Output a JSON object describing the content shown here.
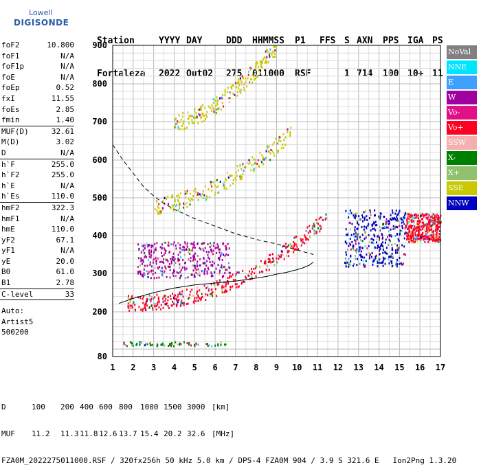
{
  "logo": {
    "line1": "Lowell",
    "line2": "DIGISONDE"
  },
  "header": {
    "row1": [
      "Station",
      "YYYY",
      "DAY",
      "DDD",
      "HHMMSS",
      "P1",
      "FFS",
      "S",
      "AXN",
      "PPS",
      "IGA",
      "PS"
    ],
    "row2": [
      "Fortaleza",
      "2022",
      "Out02",
      "275",
      "011000",
      "RSF",
      "",
      "1",
      "714",
      "100",
      "10+",
      "11"
    ]
  },
  "params": [
    {
      "k": "foF2",
      "v": "10.800"
    },
    {
      "k": "foF1",
      "v": "N/A"
    },
    {
      "k": "foF1p",
      "v": "N/A"
    },
    {
      "k": "foE",
      "v": "N/A"
    },
    {
      "k": "foEp",
      "v": "0.52"
    },
    {
      "k": "fxI",
      "v": "11.55"
    },
    {
      "k": "foEs",
      "v": "2.85"
    },
    {
      "k": "fmin",
      "v": "1.40"
    },
    "sep",
    {
      "k": "MUF(D)",
      "v": "32.61"
    },
    {
      "k": "M(D)",
      "v": "3.02"
    },
    {
      "k": "D",
      "v": "N/A"
    },
    "sep",
    {
      "k": "h`F",
      "v": "255.0"
    },
    {
      "k": "h`F2",
      "v": "255.0"
    },
    {
      "k": "h`E",
      "v": "N/A"
    },
    {
      "k": "h`Es",
      "v": "110.0"
    },
    "sep",
    {
      "k": "hmF2",
      "v": "322.3"
    },
    {
      "k": "hmF1",
      "v": "N/A"
    },
    {
      "k": "hmE",
      "v": "110.0"
    },
    {
      "k": "yF2",
      "v": "67.1"
    },
    {
      "k": "yF1",
      "v": "N/A"
    },
    {
      "k": "yE",
      "v": "20.0"
    },
    {
      "k": "B0",
      "v": "61.0"
    },
    {
      "k": "B1",
      "v": "2.78"
    },
    "sep",
    {
      "k": "C-level",
      "v": "33"
    },
    "sep"
  ],
  "auto_lines": [
    "Auto:",
    "Artist5",
    "500200"
  ],
  "legend": [
    {
      "label": "NoVal",
      "color": "#808080"
    },
    {
      "label": "NNE",
      "color": "#00e5ff"
    },
    {
      "label": "E",
      "color": "#3fa0ff"
    },
    {
      "label": "W",
      "color": "#a000a0"
    },
    {
      "label": "Vo-",
      "color": "#e01088"
    },
    {
      "label": "Vo+",
      "color": "#ff0020"
    },
    {
      "label": "SSW",
      "color": "#f4b0b0"
    },
    {
      "label": "X-",
      "color": "#008000"
    },
    {
      "label": "X+",
      "color": "#90c070"
    },
    {
      "label": "SSE",
      "color": "#c8c800"
    },
    {
      "label": "NNW",
      "color": "#0000c0"
    }
  ],
  "footer": {
    "line1_label": "D",
    "line1_values": [
      "100",
      "200",
      "400",
      "600",
      "800",
      "1000",
      "1500",
      "3000"
    ],
    "line1_unit": "[km]",
    "line2_label": "MUF",
    "line2_values": [
      "11.2",
      "11.3",
      "11.8",
      "12.6",
      "13.7",
      "15.4",
      "20.2",
      "32.6"
    ],
    "line2_unit": "[MHz]",
    "line3": "FZA0M_2022275011000.RSF / 320fx256h 50 kHz 5.0 km / DPS-4 FZA0M 904 / 3.9 S 321.6 E   Ion2Png 1.3.20"
  },
  "chart_data": {
    "type": "scatter",
    "title": "",
    "xlabel": "",
    "ylabel": "",
    "xlim": [
      1,
      17
    ],
    "ylim": [
      80,
      900
    ],
    "x_ticks": [
      1,
      2,
      3,
      4,
      5,
      6,
      7,
      8,
      9,
      10,
      11,
      12,
      13,
      14,
      15,
      16,
      17
    ],
    "y_ticks": [
      80,
      200,
      300,
      400,
      500,
      600,
      700,
      800,
      900
    ],
    "grid": true,
    "legend_position": "right",
    "o_trace_profile": {
      "x": [
        1.3,
        2,
        3,
        4,
        5,
        6,
        7,
        8,
        8.5,
        9,
        9.5,
        10,
        10.3,
        10.6,
        10.8
      ],
      "y": [
        222,
        235,
        250,
        262,
        270,
        275,
        280,
        288,
        292,
        298,
        303,
        310,
        315,
        322,
        330
      ]
    },
    "mode_curve": {
      "x": [
        1,
        1.5,
        2,
        2.5,
        3,
        3.5,
        4,
        5,
        6,
        7,
        8,
        9,
        10,
        10.8
      ],
      "y": [
        640,
        600,
        565,
        530,
        505,
        485,
        470,
        445,
        425,
        405,
        390,
        378,
        362,
        350
      ]
    },
    "echo_clusters": [
      {
        "mode": "Vo+",
        "trace": "F2 o-trace",
        "x_range": [
          1.7,
          11.5
        ],
        "y_range": [
          225,
          455
        ]
      },
      {
        "mode": "W",
        "trace": "spread F",
        "x_range": [
          2.2,
          6.7
        ],
        "y_range": [
          290,
          385
        ]
      },
      {
        "mode": "NNW",
        "trace": "F region",
        "x_range": [
          12.3,
          15.3
        ],
        "y_range": [
          320,
          470
        ]
      },
      {
        "mode": "Vo+",
        "trace": "F region",
        "x_range": [
          15.3,
          17
        ],
        "y_range": [
          385,
          460
        ]
      },
      {
        "mode": "X-",
        "trace": "Es",
        "x_range": [
          1.4,
          6.5
        ],
        "y_range": [
          110,
          122
        ]
      },
      {
        "mode": "SSE",
        "trace": "2nd multiple",
        "x_range": [
          3,
          9.7
        ],
        "y_range": [
          480,
          670
        ]
      },
      {
        "mode": "SSE",
        "trace": "3rd multiple",
        "x_range": [
          4,
          9
        ],
        "y_range": [
          700,
          900
        ]
      }
    ]
  }
}
